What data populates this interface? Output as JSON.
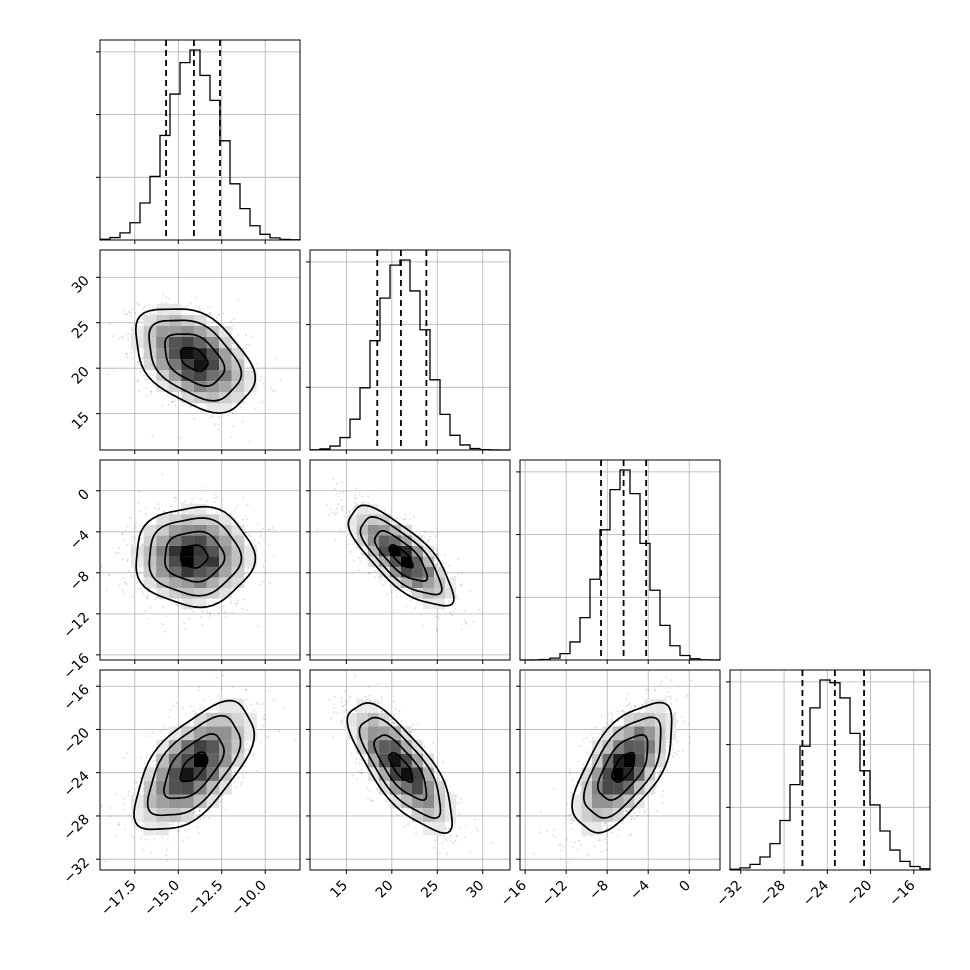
{
  "chart_data": {
    "type": "corner",
    "parameters": [
      {
        "range": [
          -19.5,
          -8.0
        ],
        "ticks": [
          -17.5,
          -15.0,
          -12.5,
          -10.0
        ],
        "tick_labels": [
          "−17.5",
          "−15.0",
          "−12.5",
          "−10.0"
        ],
        "mean": -14.1,
        "sd": 1.55,
        "quantiles": [
          -15.7,
          -14.1,
          -12.6
        ]
      },
      {
        "range": [
          11.0,
          33.0
        ],
        "ticks": [
          15,
          20,
          25,
          30
        ],
        "tick_labels": [
          "15",
          "20",
          "25",
          "30"
        ],
        "mean": 21.0,
        "sd": 2.6,
        "quantiles": [
          18.4,
          21.0,
          23.8
        ]
      },
      {
        "range": [
          -16.5,
          3.0
        ],
        "ticks": [
          -16,
          -12,
          -8,
          -4,
          0
        ],
        "tick_labels": [
          "−16",
          "−12",
          "−8",
          "−4",
          "0"
        ],
        "mean": -6.4,
        "sd": 2.2,
        "quantiles": [
          -8.6,
          -6.4,
          -4.2
        ]
      },
      {
        "range": [
          -33.0,
          -14.5
        ],
        "ticks": [
          -32,
          -28,
          -24,
          -20,
          -16
        ],
        "tick_labels": [
          "−32",
          "−28",
          "−24",
          "−20",
          "−16"
        ],
        "mean": -23.5,
        "sd": 2.7,
        "quantiles": [
          -26.3,
          -23.3,
          -20.6
        ]
      }
    ],
    "correlations": [
      [
        1.0,
        -0.4,
        0.0,
        0.6
      ],
      [
        -0.4,
        1.0,
        -0.75,
        -0.75
      ],
      [
        0.0,
        -0.75,
        1.0,
        0.6
      ],
      [
        0.6,
        -0.75,
        0.6,
        1.0
      ]
    ],
    "hist_bins": 20,
    "samples_per_panel": 1800,
    "contour_levels": [
      0.5,
      1.1,
      1.7,
      2.2
    ],
    "grid": true,
    "title": "",
    "colors": {
      "frame": "#000000",
      "grid": "#b0b0b0",
      "points": "#555555"
    }
  }
}
